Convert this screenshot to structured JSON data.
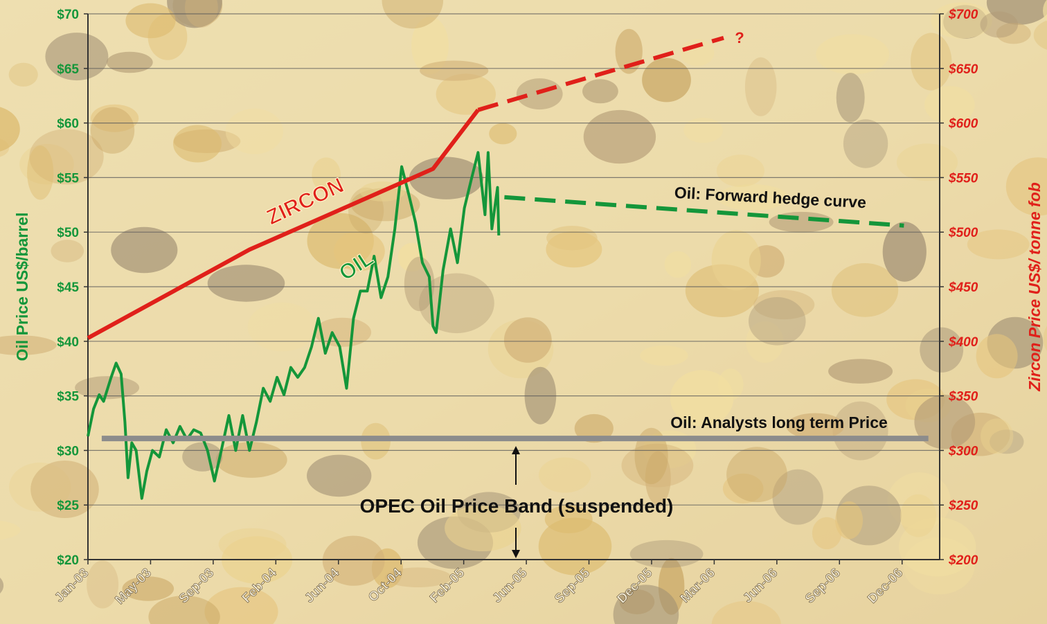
{
  "chart_data": {
    "type": "line",
    "ylabel": "Oil Price US$/barrel",
    "y2label": "Zircon Price US$/ tonne fob",
    "xlim": [
      0,
      13.6
    ],
    "xticks": [
      {
        "value": 0,
        "label": "Jan-03"
      },
      {
        "value": 1,
        "label": "May-03"
      },
      {
        "value": 2,
        "label": "Sep-03"
      },
      {
        "value": 3,
        "label": "Feb-04"
      },
      {
        "value": 4,
        "label": "Jun-04"
      },
      {
        "value": 5,
        "label": "Oct-04"
      },
      {
        "value": 6,
        "label": "Feb-05"
      },
      {
        "value": 7,
        "label": "Jun-05"
      },
      {
        "value": 8,
        "label": "Sep-05"
      },
      {
        "value": 9,
        "label": "Dec-05"
      },
      {
        "value": 10,
        "label": "Mar-06"
      },
      {
        "value": 11,
        "label": "Jun-06"
      },
      {
        "value": 12,
        "label": "Sep-06"
      },
      {
        "value": 13,
        "label": "Dec-06"
      }
    ],
    "ylim": [
      20,
      70
    ],
    "yticks": [
      {
        "value": 20,
        "label": "$20"
      },
      {
        "value": 25,
        "label": "$25"
      },
      {
        "value": 30,
        "label": "$30"
      },
      {
        "value": 35,
        "label": "$35"
      },
      {
        "value": 40,
        "label": "$40"
      },
      {
        "value": 45,
        "label": "$45"
      },
      {
        "value": 50,
        "label": "$50"
      },
      {
        "value": 55,
        "label": "$55"
      },
      {
        "value": 60,
        "label": "$60"
      },
      {
        "value": 65,
        "label": "$65"
      },
      {
        "value": 70,
        "label": "$70"
      }
    ],
    "y2lim": [
      200,
      700
    ],
    "y2ticks": [
      {
        "value": 200,
        "label": "$200"
      },
      {
        "value": 250,
        "label": "$250"
      },
      {
        "value": 300,
        "label": "$300"
      },
      {
        "value": 350,
        "label": "$350"
      },
      {
        "value": 400,
        "label": "$400"
      },
      {
        "value": 450,
        "label": "$450"
      },
      {
        "value": 500,
        "label": "$500"
      },
      {
        "value": 550,
        "label": "$550"
      },
      {
        "value": 600,
        "label": "$600"
      },
      {
        "value": 650,
        "label": "$650"
      },
      {
        "value": 700,
        "label": "$700"
      }
    ],
    "grid": true,
    "series": [
      {
        "name": "OIL",
        "color": "#14963a",
        "x": [
          0,
          0.09,
          0.18,
          0.25,
          0.37,
          0.45,
          0.53,
          0.59,
          0.64,
          0.7,
          0.77,
          0.86,
          0.94,
          1.03,
          1.14,
          1.25,
          1.36,
          1.47,
          1.58,
          1.69,
          1.8,
          1.91,
          2.02,
          2.13,
          2.25,
          2.36,
          2.47,
          2.58,
          2.69,
          2.8,
          2.91,
          3.02,
          3.13,
          3.24,
          3.35,
          3.46,
          3.57,
          3.68,
          3.79,
          3.9,
          4.02,
          4.13,
          4.24,
          4.35,
          4.46,
          4.57,
          4.68,
          4.79,
          4.9,
          5.01,
          5.12,
          5.23,
          5.34,
          5.45,
          5.51,
          5.56,
          5.67,
          5.79,
          5.9,
          6.01,
          6.12,
          6.23,
          6.34,
          6.39,
          6.45,
          6.54,
          6.56
        ],
        "values": [
          31.3,
          33.8,
          35.1,
          34.5,
          36.7,
          38,
          37,
          32.6,
          27.5,
          30.7,
          30,
          25.6,
          28.1,
          30,
          29.4,
          31.9,
          30.7,
          32.2,
          31,
          31.9,
          31.6,
          30,
          27.2,
          30,
          33.2,
          30,
          33.2,
          30,
          32.6,
          35.7,
          34.5,
          36.7,
          35.1,
          37.6,
          36.7,
          37.6,
          39.5,
          42.1,
          38.9,
          40.8,
          39.5,
          35.7,
          42.1,
          44.6,
          44.6,
          47.8,
          44,
          45.9,
          50.3,
          56,
          53.5,
          50.9,
          47.2,
          45.9,
          41.4,
          40.8,
          46.5,
          50.3,
          47.2,
          52.2,
          54.8,
          57.3,
          51.6,
          57.3,
          50.3,
          54.1,
          49.7
        ]
      },
      {
        "name": "ZIRCON",
        "color": "#e0201a",
        "axis": "y2",
        "x": [
          0,
          2.58,
          5.51,
          6.23
        ],
        "values": [
          403,
          484,
          558,
          612
        ]
      },
      {
        "color": "#e0201a",
        "axis": "y2",
        "dash": true,
        "x": [
          6.23,
          10.15
        ],
        "values": [
          612,
          678
        ]
      },
      {
        "name": "Oil: Forward hedge curve",
        "color": "#14963a",
        "dash": true,
        "x": [
          6.65,
          13.03
        ],
        "values": [
          53.2,
          50.6
        ]
      },
      {
        "name": "Oil: Analysts long term Price",
        "color": "#8c8c8c",
        "x": [
          0.22,
          13.42
        ],
        "values": [
          31.1,
          31.1
        ]
      }
    ],
    "annotations": [
      "?",
      "OPEC Oil Price Band (suspended)"
    ]
  }
}
